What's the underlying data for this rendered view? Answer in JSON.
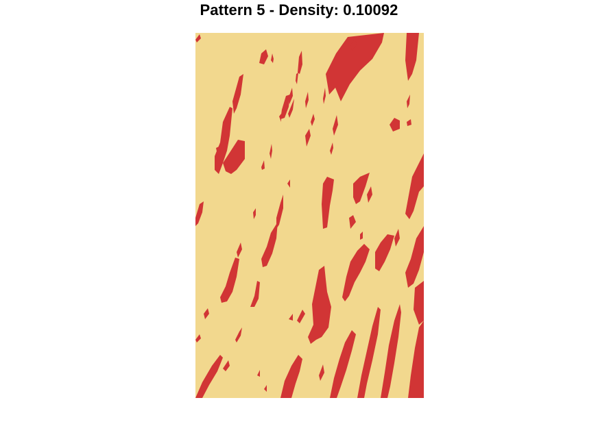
{
  "title": "Pattern 5 - Density: 0.10092",
  "colors": {
    "background": "#F2D88E",
    "streak": "#D13535"
  }
}
